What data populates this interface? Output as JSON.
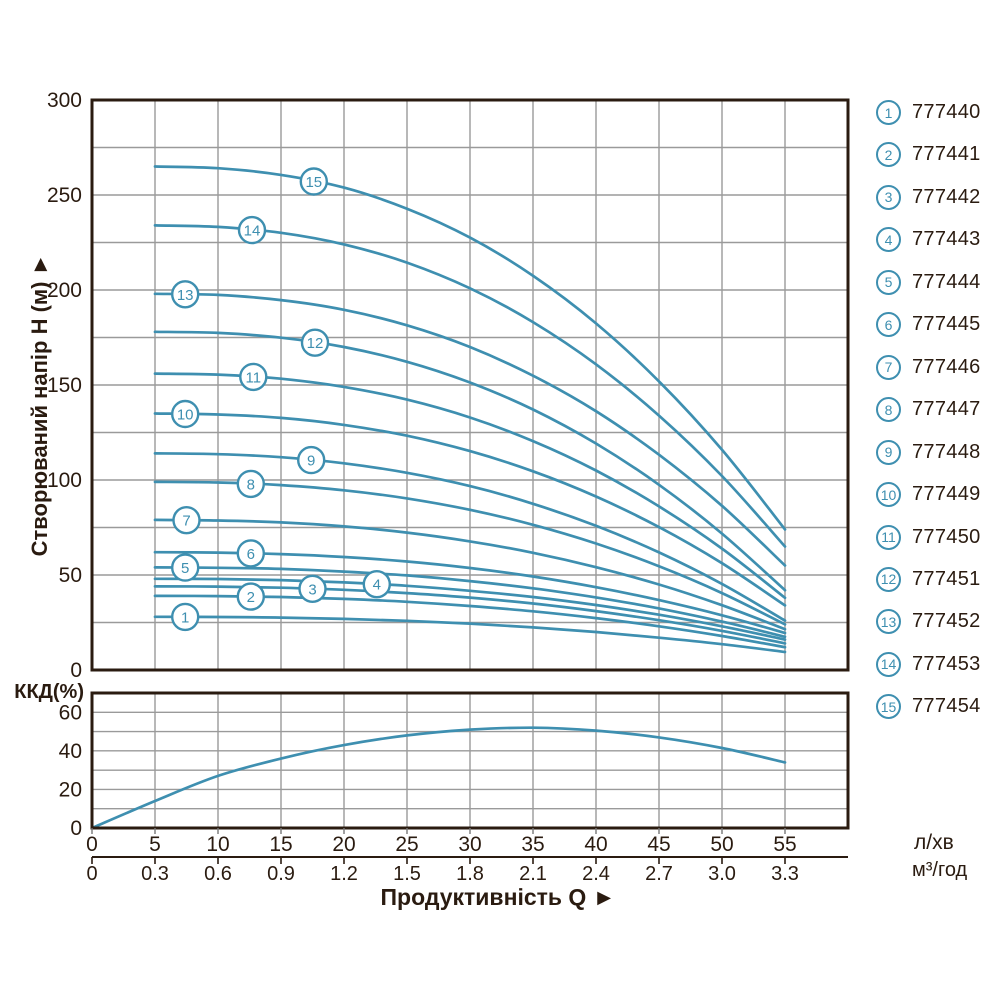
{
  "colors": {
    "curve": "#3E8FB0",
    "grid": "#9A9A9A",
    "axis": "#2A1B10",
    "background": "#FFFFFF"
  },
  "axes": {
    "y_label": "Створюваний напір H (м) ►",
    "eff_label": "ККД(%)",
    "x_title": "Продуктивність  Q ►",
    "unit_flow_lmin": "л/хв",
    "unit_flow_m3h": "м³/год"
  },
  "chart_data": [
    {
      "type": "line",
      "ylabel": "Створюваний напір H (м)",
      "xlabel": "Продуктивність Q",
      "x_units": [
        "л/хв",
        "м³/год"
      ],
      "xlim": [
        0,
        60
      ],
      "ylim": [
        0,
        300
      ],
      "grid": "on",
      "grid_step_x": 5,
      "grid_step_y": 25,
      "y_ticks": [
        0,
        50,
        100,
        150,
        200,
        250,
        300
      ],
      "x_ticks": [
        0,
        5,
        10,
        15,
        20,
        25,
        30,
        35,
        40,
        45,
        50,
        55
      ],
      "x_ticks_m3h": [
        "0",
        "0.3",
        "0.6",
        "0.9",
        "1.2",
        "1.5",
        "1.8",
        "2.1",
        "2.4",
        "2.7",
        "3.0",
        "3.3"
      ],
      "x": [
        5,
        10,
        15,
        20,
        25,
        30,
        35,
        40,
        45,
        50,
        55
      ],
      "series": [
        {
          "name": "1",
          "code": "777440",
          "label_q": 7.4,
          "values": [
            28,
            27.9,
            27.6,
            26.9,
            25.9,
            24.4,
            22.4,
            20,
            17,
            13.6,
            9.5
          ]
        },
        {
          "name": "2",
          "code": "777441",
          "label_q": 12.6,
          "values": [
            39,
            38.9,
            38.4,
            37.4,
            35.9,
            33.7,
            30.9,
            27.3,
            23,
            17.9,
            12
          ]
        },
        {
          "name": "3",
          "code": "777442",
          "label_q": 17.5,
          "values": [
            44,
            43.9,
            43.3,
            42.2,
            40.5,
            38.1,
            35,
            31,
            26.2,
            20.6,
            14
          ]
        },
        {
          "name": "4",
          "code": "777443",
          "label_q": 22.6,
          "values": [
            48,
            47.9,
            47.3,
            46.1,
            44.3,
            41.7,
            38.4,
            34.2,
            29.1,
            23,
            16
          ]
        },
        {
          "name": "5",
          "code": "777444",
          "label_q": 7.4,
          "values": [
            54,
            53.8,
            53.2,
            51.8,
            49.8,
            46.8,
            43,
            38.2,
            32.4,
            25.5,
            17.5
          ]
        },
        {
          "name": "6",
          "code": "777445",
          "label_q": 12.6,
          "values": [
            62,
            61.8,
            61,
            59.5,
            57.1,
            53.7,
            49.2,
            43.6,
            36.8,
            28.8,
            19.5
          ]
        },
        {
          "name": "7",
          "code": "777446",
          "label_q": 7.5,
          "values": [
            79,
            78.7,
            77.7,
            75.6,
            72.3,
            67.7,
            61.7,
            54.1,
            45,
            34.1,
            21.5
          ]
        },
        {
          "name": "8",
          "code": "777447",
          "label_q": 12.6,
          "values": [
            99,
            98.7,
            97.3,
            94.6,
            90.3,
            84.3,
            76.4,
            66.6,
            54.6,
            40.5,
            24
          ]
        },
        {
          "name": "9",
          "code": "777448",
          "label_q": 17.4,
          "values": [
            114,
            113.6,
            112,
            108.8,
            103.8,
            96.8,
            87.5,
            75.9,
            61.9,
            45.3,
            26
          ]
        },
        {
          "name": "10",
          "code": "777449",
          "label_q": 7.4,
          "values": [
            135,
            134.5,
            132.7,
            129,
            123.3,
            115.2,
            104.6,
            91.3,
            75.2,
            56.2,
            34
          ]
        },
        {
          "name": "11",
          "code": "777450",
          "label_q": 12.8,
          "values": [
            156,
            155.5,
            153.3,
            149,
            142.3,
            132.9,
            120.5,
            105,
            86.1,
            63.9,
            38
          ]
        },
        {
          "name": "12",
          "code": "777451",
          "label_q": 17.7,
          "values": [
            178,
            177.4,
            174.9,
            170,
            162.2,
            151.3,
            137.1,
            119.2,
            97.5,
            71.8,
            42
          ]
        },
        {
          "name": "13",
          "code": "777452",
          "label_q": 7.4,
          "values": [
            198,
            197.4,
            194.7,
            189.6,
            181.4,
            170,
            154.9,
            136.2,
            113.3,
            86.4,
            55
          ]
        },
        {
          "name": "14",
          "code": "777453",
          "label_q": 12.7,
          "values": [
            234,
            233.2,
            230.1,
            224,
            214.4,
            200.9,
            183.1,
            160.9,
            133.9,
            102.1,
            65
          ]
        },
        {
          "name": "15",
          "code": "777454",
          "label_q": 17.6,
          "values": [
            265,
            264.1,
            260.6,
            253.9,
            242.8,
            227.6,
            207.5,
            182.4,
            151.9,
            115.9,
            74
          ]
        }
      ]
    },
    {
      "type": "line",
      "ylabel": "ККД(%)",
      "xlim": [
        0,
        60
      ],
      "ylim": [
        0,
        70
      ],
      "grid": "on",
      "grid_step_x": 5,
      "grid_step_y": 10,
      "y_ticks": [
        0,
        20,
        40,
        60
      ],
      "x": [
        0,
        5,
        10,
        15,
        20,
        25,
        30,
        35,
        40,
        45,
        50,
        55
      ],
      "series": [
        {
          "name": "ККД",
          "values": [
            0,
            14,
            27,
            36,
            43,
            48,
            51,
            52,
            50.5,
            47,
            41.5,
            34
          ]
        }
      ]
    }
  ],
  "legend": {
    "items": [
      {
        "num": "1",
        "code": "777440"
      },
      {
        "num": "2",
        "code": "777441"
      },
      {
        "num": "3",
        "code": "777442"
      },
      {
        "num": "4",
        "code": "777443"
      },
      {
        "num": "5",
        "code": "777444"
      },
      {
        "num": "6",
        "code": "777445"
      },
      {
        "num": "7",
        "code": "777446"
      },
      {
        "num": "8",
        "code": "777447"
      },
      {
        "num": "9",
        "code": "777448"
      },
      {
        "num": "10",
        "code": "777449"
      },
      {
        "num": "11",
        "code": "777450"
      },
      {
        "num": "12",
        "code": "777451"
      },
      {
        "num": "13",
        "code": "777452"
      },
      {
        "num": "14",
        "code": "777453"
      },
      {
        "num": "15",
        "code": "777454"
      }
    ]
  }
}
